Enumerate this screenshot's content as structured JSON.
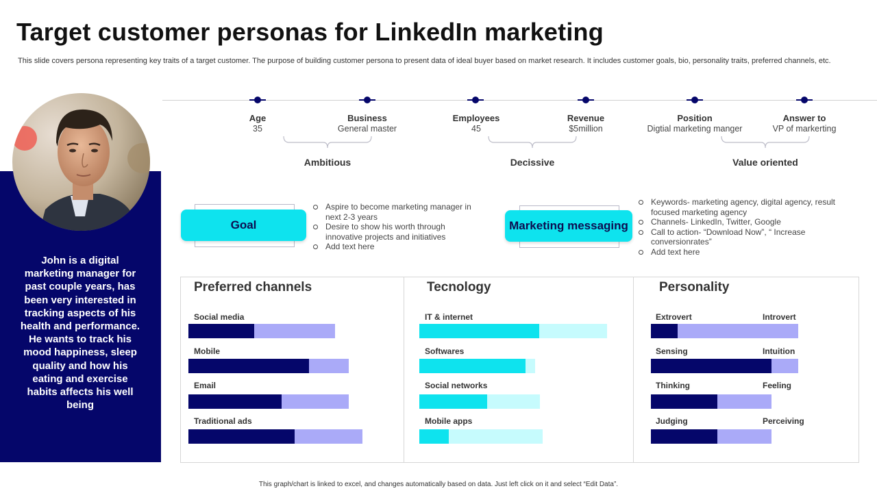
{
  "title": "Target customer personas for LinkedIn marketing",
  "subtitle": "This slide covers persona representing key traits of a target customer. The purpose of building customer persona to present data of ideal buyer based on market research. It includes customer goals, bio, personality traits, preferred channels, etc.",
  "bio": "John is a digital marketing manager for past couple years, has been very interested in tracking aspects of his health and performance. He wants to track his mood happiness, sleep quality and how his eating and exercise habits affects his well being",
  "stats": [
    {
      "label": "Age",
      "value": "35"
    },
    {
      "label": "Business",
      "value": "General  master"
    },
    {
      "label": "Employees",
      "value": "45"
    },
    {
      "label": "Revenue",
      "value": "$5million"
    },
    {
      "label": "Position",
      "value": "Digtial  marketing   manger"
    },
    {
      "label": "Answer to",
      "value": "VP of markerting"
    }
  ],
  "traits": [
    "Ambitious",
    "Decissive",
    "Value oriented"
  ],
  "goal": {
    "label": "Goal",
    "bullets": [
      "Aspire to  become marketing manager in next 2-3 years",
      "Desire to show his worth through innovative projects and initiatives",
      "Add text here"
    ]
  },
  "messaging": {
    "label": "Marketing messaging",
    "bullets": [
      "Keywords- marketing agency, digital agency, result focused marketing agency",
      "Channels- LinkedIn, Twitter, Google",
      "Call to action- “Download Now”, “ Increase conversionrates”",
      "Add text here"
    ]
  },
  "preferred_channels": {
    "title": "Preferred channels",
    "colors": {
      "fill": "#05066a",
      "track": "#aaaaf8"
    },
    "items": [
      {
        "label": "Social media",
        "value": 45
      },
      {
        "label": "Mobile",
        "value": 75
      },
      {
        "label": "Email",
        "value": 58
      },
      {
        "label": "Traditional ads",
        "value": 61
      }
    ]
  },
  "technology": {
    "title": "Tecnology",
    "colors": {
      "fill": "#0ee3ee",
      "track": "#c6fbfd"
    },
    "items": [
      {
        "label": "IT & internet",
        "value": 64
      },
      {
        "label": "Softwares",
        "value": 92
      },
      {
        "label": "Social networks",
        "value": 56
      },
      {
        "label": "Mobile apps",
        "value": 24
      }
    ]
  },
  "personality": {
    "title": "Personality",
    "colors": {
      "fill": "#05066a",
      "track": "#aaaaf8"
    },
    "items": [
      {
        "left": "Extrovert",
        "right": "Introvert",
        "value": 18
      },
      {
        "left": "Sensing",
        "right": "Intuition",
        "value": 82
      },
      {
        "left": "Thinking",
        "right": "Feeling",
        "value": 55
      },
      {
        "left": "Judging",
        "right": "Perceiving",
        "value": 55
      }
    ]
  },
  "footer": "This graph/chart is linked to excel, and changes automatically based on data. Just left click on it and select “Edit Data”."
}
